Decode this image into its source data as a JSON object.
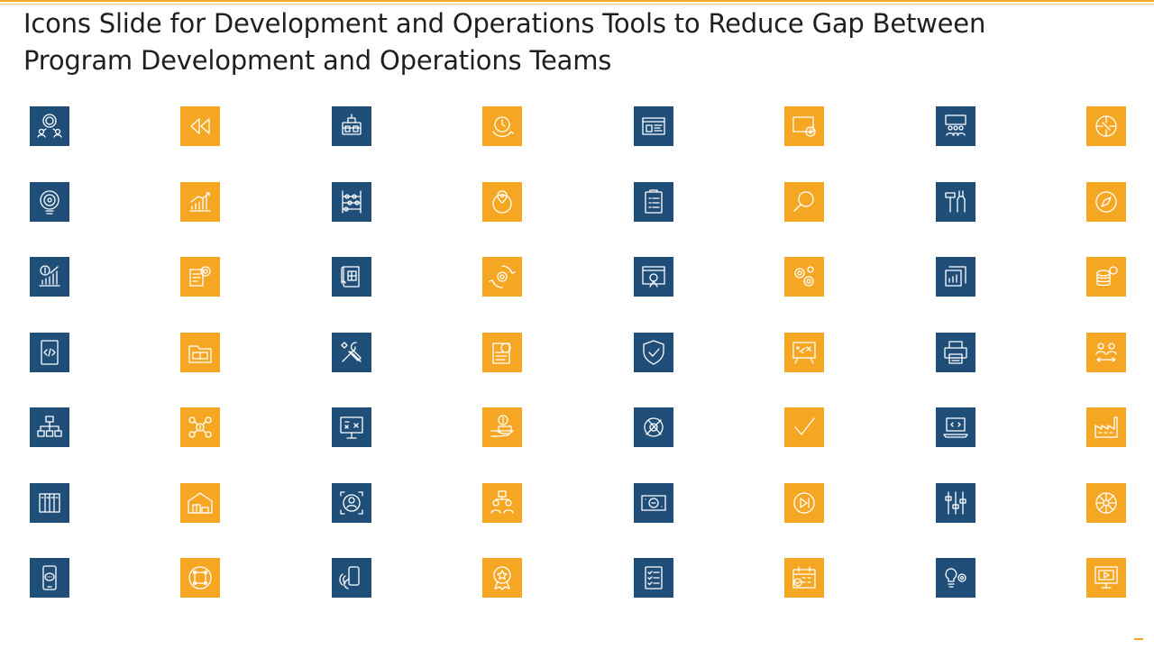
{
  "slide": {
    "title_line1": "Icons Slide for Development and Operations Tools to Reduce Gap Between",
    "title_line2": "Program Development and Operations Teams"
  },
  "colors": {
    "blue": "#1F4E79",
    "orange": "#F5A623",
    "accent_rule": "#F5A623"
  },
  "icons": [
    {
      "name": "team-network-icon",
      "color": "blue"
    },
    {
      "name": "rewind-icon",
      "color": "orange"
    },
    {
      "name": "luggage-icon",
      "color": "blue"
    },
    {
      "name": "clock-cycle-icon",
      "color": "orange"
    },
    {
      "name": "dashboard-window-icon",
      "color": "blue"
    },
    {
      "name": "screen-download-icon",
      "color": "orange"
    },
    {
      "name": "team-meeting-board-icon",
      "color": "blue"
    },
    {
      "name": "compass-circle-icon",
      "color": "orange"
    },
    {
      "name": "bulb-target-icon",
      "color": "blue"
    },
    {
      "name": "growth-bar-chart-icon",
      "color": "orange"
    },
    {
      "name": "abacus-icon",
      "color": "blue"
    },
    {
      "name": "globe-location-pin-icon",
      "color": "orange"
    },
    {
      "name": "clipboard-checklist-icon",
      "color": "blue"
    },
    {
      "name": "magnifier-icon",
      "color": "orange"
    },
    {
      "name": "hammer-tools-icon",
      "color": "blue"
    },
    {
      "name": "compass-icon",
      "color": "orange"
    },
    {
      "name": "dollar-growth-chart-icon",
      "color": "blue"
    },
    {
      "name": "document-gear-icon",
      "color": "orange"
    },
    {
      "name": "blueprint-scroll-icon",
      "color": "blue"
    },
    {
      "name": "gear-cycle-icon",
      "color": "orange"
    },
    {
      "name": "web-page-gear-icon",
      "color": "blue"
    },
    {
      "name": "gears-icon",
      "color": "orange"
    },
    {
      "name": "stacked-chart-windows-icon",
      "color": "blue"
    },
    {
      "name": "coins-settings-icon",
      "color": "orange"
    },
    {
      "name": "code-tablet-icon",
      "color": "blue"
    },
    {
      "name": "folder-icon",
      "color": "orange"
    },
    {
      "name": "wrench-screwdriver-icon",
      "color": "blue"
    },
    {
      "name": "document-badge-icon",
      "color": "orange"
    },
    {
      "name": "shield-check-icon",
      "color": "blue"
    },
    {
      "name": "strategy-board-icon",
      "color": "orange"
    },
    {
      "name": "printer-icon",
      "color": "blue"
    },
    {
      "name": "people-exchange-icon",
      "color": "orange"
    },
    {
      "name": "org-chart-icon",
      "color": "blue"
    },
    {
      "name": "network-dollar-icon",
      "color": "orange"
    },
    {
      "name": "presentation-board-icon",
      "color": "blue"
    },
    {
      "name": "hand-money-icon",
      "color": "orange"
    },
    {
      "name": "gear-tools-icon",
      "color": "blue"
    },
    {
      "name": "checkmark-icon",
      "color": "orange"
    },
    {
      "name": "laptop-code-icon",
      "color": "blue"
    },
    {
      "name": "factory-icon",
      "color": "orange"
    },
    {
      "name": "server-racks-icon",
      "color": "blue"
    },
    {
      "name": "warehouse-icon",
      "color": "orange"
    },
    {
      "name": "focus-person-icon",
      "color": "blue"
    },
    {
      "name": "hierarchy-people-icon",
      "color": "orange"
    },
    {
      "name": "banknote-icon",
      "color": "blue"
    },
    {
      "name": "play-next-icon",
      "color": "orange"
    },
    {
      "name": "mixer-sliders-icon",
      "color": "blue"
    },
    {
      "name": "radial-network-icon",
      "color": "orange"
    },
    {
      "name": "mobile-chat-icon",
      "color": "blue"
    },
    {
      "name": "circle-frame-icon",
      "color": "orange"
    },
    {
      "name": "phone-hand-icon",
      "color": "blue"
    },
    {
      "name": "award-star-icon",
      "color": "orange"
    },
    {
      "name": "checklist-icon",
      "color": "blue"
    },
    {
      "name": "calendar-check-icon",
      "color": "orange"
    },
    {
      "name": "idea-gear-icon",
      "color": "blue"
    },
    {
      "name": "monitor-video-icon",
      "color": "orange"
    }
  ]
}
